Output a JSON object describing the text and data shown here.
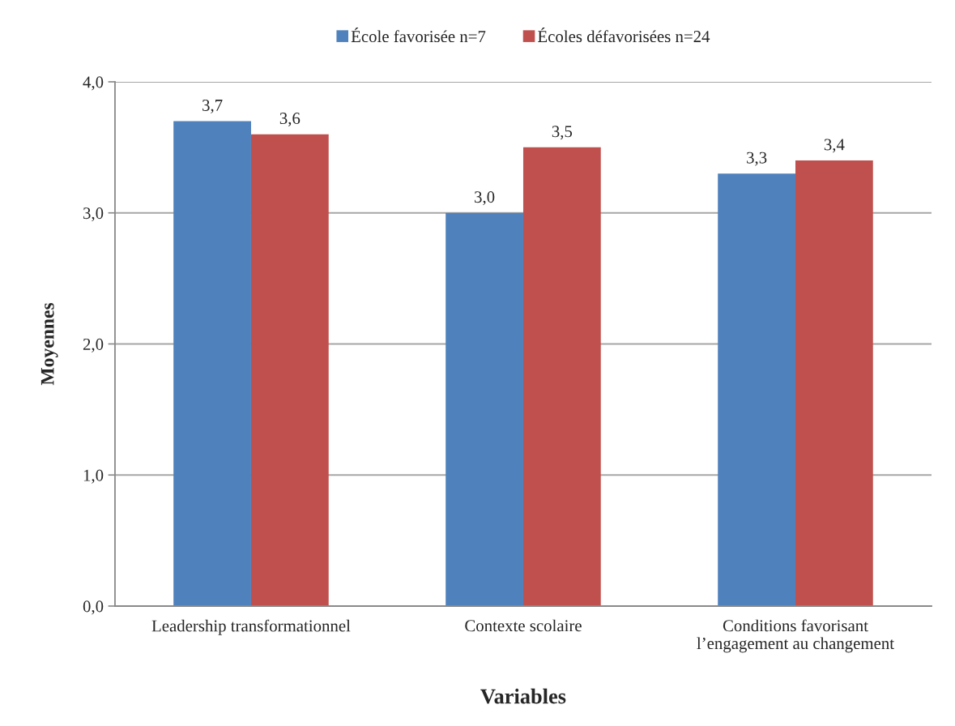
{
  "chart_data": {
    "type": "bar",
    "categories": [
      "Leadership transformationnel",
      "Contexte scolaire",
      "Conditions favorisant\nl’engagement au changement"
    ],
    "series": [
      {
        "name": "École favorisée n=7",
        "color": "#4f81bd",
        "values": [
          3.7,
          3.0,
          3.3
        ],
        "value_labels": [
          "3,7",
          "3,0",
          "3,3"
        ]
      },
      {
        "name": "Écoles défavorisées n=24",
        "color": "#c0504d",
        "values": [
          3.6,
          3.5,
          3.4
        ],
        "value_labels": [
          "3,6",
          "3,5",
          "3,4"
        ]
      }
    ],
    "xlabel": "Variables",
    "ylabel": "Moyennes",
    "ylim": [
      0,
      4
    ],
    "yticks": [
      {
        "value": 0,
        "label": "0,0"
      },
      {
        "value": 1,
        "label": "1,0"
      },
      {
        "value": 2,
        "label": "2,0"
      },
      {
        "value": 3,
        "label": "3,0"
      },
      {
        "value": 4,
        "label": "4,0"
      }
    ],
    "grid": "y",
    "legend": "top"
  }
}
